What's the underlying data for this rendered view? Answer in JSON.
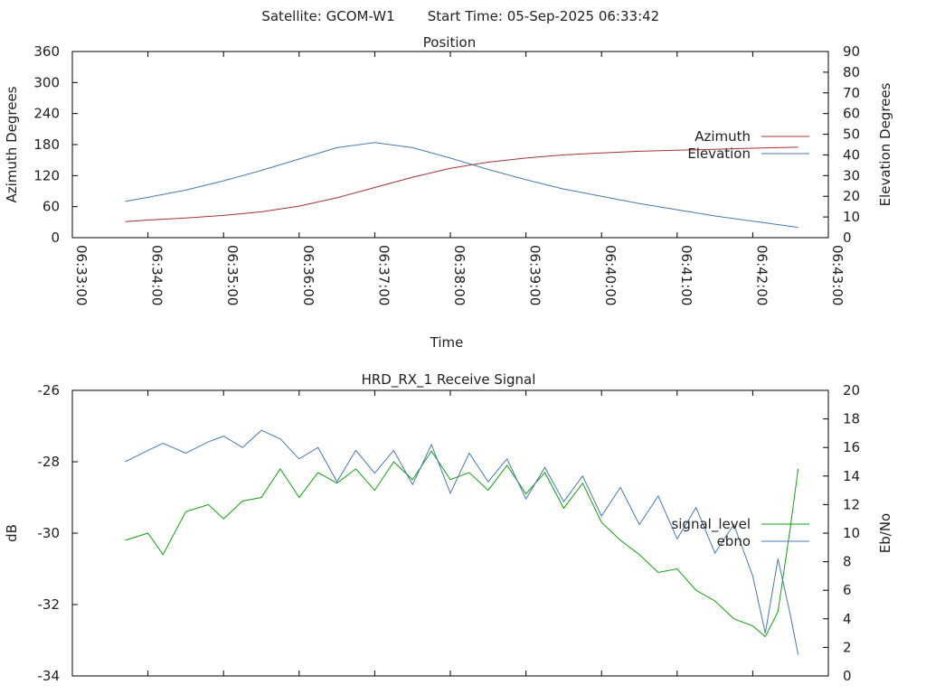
{
  "header": {
    "satellite": "Satellite: GCOM-W1",
    "start_time": "Start Time: 05-Sep-2025 06:33:42"
  },
  "chart_data": [
    {
      "type": "line",
      "title": "Position",
      "xlabel": "Time",
      "ylabel": "Azimuth Degrees",
      "y2label": "Elevation Degrees",
      "x_ticks": [
        "06:33:00",
        "06:34:00",
        "06:35:00",
        "06:36:00",
        "06:37:00",
        "06:38:00",
        "06:39:00",
        "06:40:00",
        "06:41:00",
        "06:42:00",
        "06:43:00"
      ],
      "xlim": [
        "06:33:00",
        "06:43:00"
      ],
      "ylim": [
        0,
        360
      ],
      "y2lim": [
        0,
        90
      ],
      "y_ticks": [
        0,
        60,
        120,
        180,
        240,
        300,
        360
      ],
      "y2_ticks": [
        0,
        10,
        20,
        30,
        40,
        50,
        60,
        70,
        80,
        90
      ],
      "grid": false,
      "legend_position": "right",
      "series": [
        {
          "name": "Azimuth",
          "axis": "y",
          "color": "#aa3030",
          "x": [
            "06:33:42",
            "06:34:00",
            "06:34:30",
            "06:35:00",
            "06:35:30",
            "06:36:00",
            "06:36:30",
            "06:37:00",
            "06:37:30",
            "06:38:00",
            "06:38:30",
            "06:39:00",
            "06:39:30",
            "06:40:00",
            "06:40:30",
            "06:41:00",
            "06:41:30",
            "06:42:00",
            "06:42:36"
          ],
          "values": [
            31,
            34,
            38,
            43,
            50,
            61,
            77,
            97,
            117,
            134,
            146,
            154,
            160,
            164,
            167,
            169,
            171,
            173,
            175
          ]
        },
        {
          "name": "Elevation",
          "axis": "y2",
          "color": "#4a78b0",
          "x": [
            "06:33:42",
            "06:34:00",
            "06:34:30",
            "06:35:00",
            "06:35:30",
            "06:36:00",
            "06:36:30",
            "06:37:00",
            "06:37:30",
            "06:38:00",
            "06:38:30",
            "06:39:00",
            "06:39:30",
            "06:40:00",
            "06:40:30",
            "06:41:00",
            "06:41:30",
            "06:42:00",
            "06:42:36"
          ],
          "values": [
            17.5,
            19.5,
            23,
            27.5,
            32.5,
            38,
            43.5,
            46,
            43.5,
            38.5,
            33,
            28,
            23.5,
            20,
            16.5,
            13.5,
            10.5,
            8,
            5
          ]
        }
      ]
    },
    {
      "type": "line",
      "title": "HRD_RX_1 Receive Signal",
      "ylabel": "dB",
      "y2label": "Eb/No",
      "xlim": [
        "06:33:00",
        "06:43:00"
      ],
      "ylim": [
        -34,
        -26
      ],
      "y2lim": [
        0,
        20
      ],
      "y_ticks": [
        -34,
        -32,
        -30,
        -28,
        -26
      ],
      "y2_ticks": [
        0,
        2,
        4,
        6,
        8,
        10,
        12,
        14,
        16,
        18,
        20
      ],
      "grid": false,
      "legend_position": "right",
      "series": [
        {
          "name": "signal_level",
          "axis": "y",
          "color": "#10a010",
          "x": [
            "06:33:42",
            "06:34:00",
            "06:34:12",
            "06:34:30",
            "06:34:48",
            "06:35:00",
            "06:35:15",
            "06:35:30",
            "06:35:45",
            "06:36:00",
            "06:36:15",
            "06:36:30",
            "06:36:45",
            "06:37:00",
            "06:37:15",
            "06:37:30",
            "06:37:45",
            "06:38:00",
            "06:38:15",
            "06:38:30",
            "06:38:45",
            "06:39:00",
            "06:39:15",
            "06:39:30",
            "06:39:45",
            "06:40:00",
            "06:40:15",
            "06:40:30",
            "06:40:45",
            "06:41:00",
            "06:41:15",
            "06:41:30",
            "06:41:45",
            "06:42:00",
            "06:42:10",
            "06:42:20",
            "06:42:30",
            "06:42:36"
          ],
          "values": [
            -30.2,
            -30.0,
            -30.6,
            -29.4,
            -29.2,
            -29.6,
            -29.1,
            -29.0,
            -28.2,
            -29.0,
            -28.3,
            -28.6,
            -28.2,
            -28.8,
            -28.0,
            -28.5,
            -27.7,
            -28.5,
            -28.3,
            -28.8,
            -28.1,
            -28.9,
            -28.3,
            -29.3,
            -28.6,
            -29.7,
            -30.2,
            -30.6,
            -31.1,
            -31.0,
            -31.6,
            -31.9,
            -32.4,
            -32.6,
            -32.9,
            -32.2,
            -29.8,
            -28.2
          ]
        },
        {
          "name": "ebno",
          "axis": "y2",
          "color": "#4a78b0",
          "x": [
            "06:33:42",
            "06:34:00",
            "06:34:12",
            "06:34:30",
            "06:34:48",
            "06:35:00",
            "06:35:15",
            "06:35:30",
            "06:35:45",
            "06:36:00",
            "06:36:15",
            "06:36:30",
            "06:36:45",
            "06:37:00",
            "06:37:15",
            "06:37:30",
            "06:37:45",
            "06:38:00",
            "06:38:15",
            "06:38:30",
            "06:38:45",
            "06:39:00",
            "06:39:15",
            "06:39:30",
            "06:39:45",
            "06:40:00",
            "06:40:15",
            "06:40:30",
            "06:40:45",
            "06:41:00",
            "06:41:15",
            "06:41:30",
            "06:41:45",
            "06:42:00",
            "06:42:10",
            "06:42:20",
            "06:42:30",
            "06:42:36"
          ],
          "values": [
            15.0,
            15.8,
            16.3,
            15.6,
            16.4,
            16.8,
            16.0,
            17.2,
            16.6,
            15.2,
            16.0,
            13.6,
            15.8,
            14.2,
            15.8,
            13.4,
            16.2,
            12.8,
            15.6,
            13.6,
            15.2,
            12.4,
            14.6,
            12.2,
            14.0,
            11.2,
            13.2,
            10.6,
            12.6,
            9.6,
            11.8,
            8.6,
            10.6,
            7.0,
            3.0,
            8.2,
            4.2,
            1.5
          ]
        }
      ]
    }
  ]
}
